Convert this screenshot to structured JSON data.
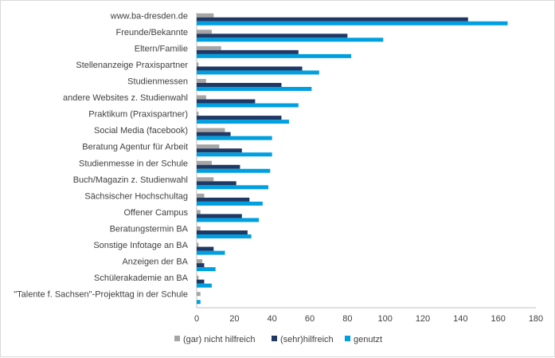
{
  "chart_data": {
    "type": "bar",
    "orientation": "horizontal",
    "categories": [
      "www.ba-dresden.de",
      "Freunde/Bekannte",
      "Eltern/Familie",
      "Stellenanzeige Praxispartner",
      "Studienmessen",
      "andere Websites z. Studienwahl",
      "Praktikum (Praxispartner)",
      "Social Media (facebook)",
      "Beratung Agentur für Arbeit",
      "Studienmesse in der Schule",
      "Buch/Magazin z. Studienwahl",
      "Sächsischer Hochschultag",
      "Offener Campus",
      "Beratungstermin BA",
      "Sonstige Infotage an BA",
      "Anzeigen der BA",
      "Schülerakademie an BA",
      "\"Talente f. Sachsen\"-Projekttag in der Schule"
    ],
    "series": [
      {
        "name": "(gar) nicht hilfreich",
        "color": "#a5a5a5",
        "values": [
          9,
          8,
          13,
          1,
          5,
          5,
          1,
          15,
          12,
          8,
          9,
          4,
          2,
          2,
          1,
          3,
          1,
          2
        ]
      },
      {
        "name": "(sehr)hilfreich",
        "color": "#1f3864",
        "values": [
          144,
          80,
          54,
          56,
          45,
          31,
          45,
          18,
          24,
          23,
          21,
          28,
          24,
          27,
          9,
          4,
          4,
          0
        ]
      },
      {
        "name": "genutzt",
        "color": "#00a0e0",
        "values": [
          165,
          99,
          82,
          65,
          61,
          54,
          49,
          40,
          40,
          39,
          38,
          35,
          33,
          29,
          15,
          10,
          8,
          2
        ]
      }
    ],
    "xlim": [
      0,
      180
    ],
    "xticks": [
      0,
      20,
      40,
      60,
      80,
      100,
      120,
      140,
      160,
      180
    ],
    "grid": false,
    "legend_position": "bottom"
  }
}
